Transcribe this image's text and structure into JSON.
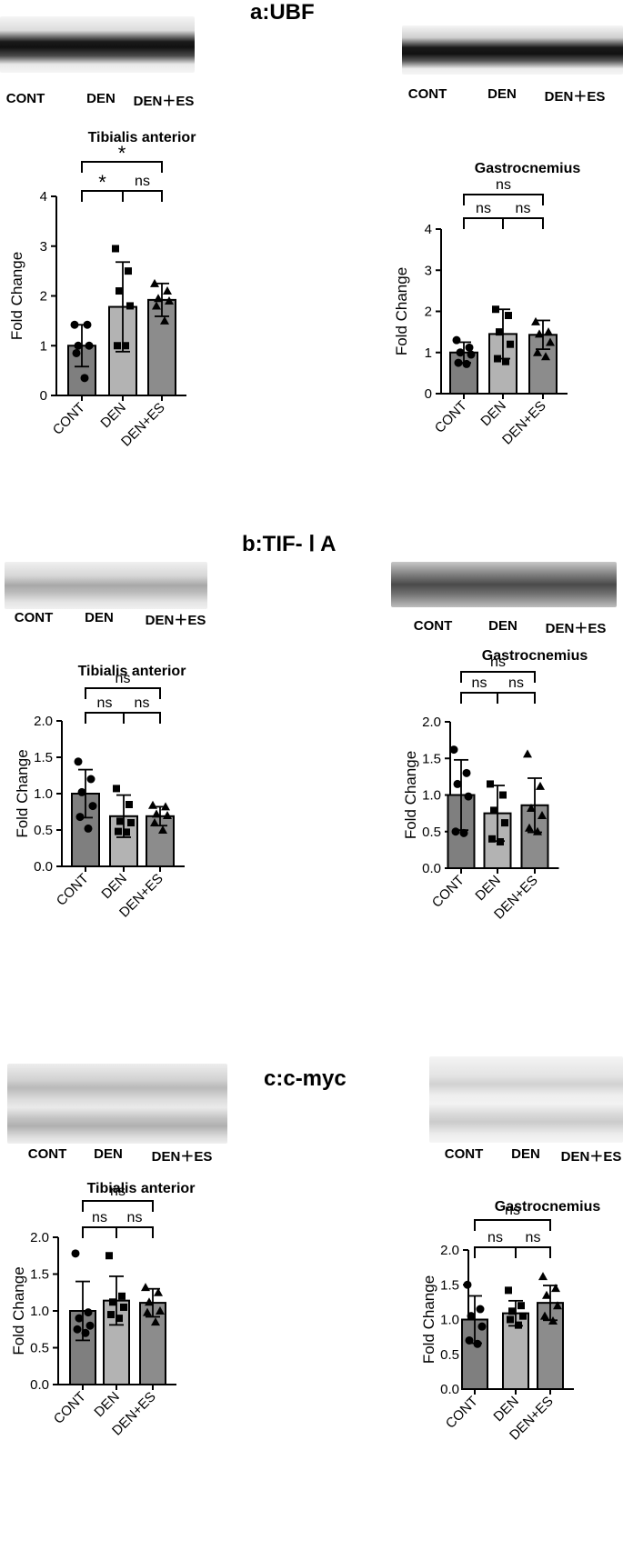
{
  "sections": [
    {
      "title": "a:UBF"
    },
    {
      "title": "b:TIF- Ⅰ A"
    },
    {
      "title": "c:c-myc"
    }
  ],
  "blot_labels": [
    "CONT",
    "DEN",
    "DEN＋ES"
  ],
  "blot_labels_b_left": [
    "CONT",
    "DEN",
    "DEN＋ES"
  ],
  "chart_data": [
    {
      "id": "a-left",
      "type": "bar",
      "title": "Tibialis anterior",
      "ylabel": "Fold Change",
      "categories": [
        "CONT",
        "DEN",
        "DEN+ES"
      ],
      "values": [
        1.0,
        1.78,
        1.92
      ],
      "sd": [
        0.42,
        0.9,
        0.33
      ],
      "ylim": [
        0,
        4
      ],
      "yticks": [
        "0",
        "1",
        "2",
        "3",
        "4"
      ],
      "colors": [
        "#7f7f7f",
        "#b3b3b3",
        "#8c8c8c"
      ],
      "markers": [
        "circle",
        "square",
        "triangle"
      ],
      "points": [
        [
          1.42,
          1.42,
          1.0,
          1.0,
          0.85,
          0.35
        ],
        [
          2.95,
          2.5,
          2.1,
          1.8,
          1.0,
          1.0
        ],
        [
          2.25,
          2.1,
          1.95,
          1.9,
          1.8,
          1.5
        ]
      ],
      "comparisons": [
        {
          "a": 0,
          "b": 1,
          "label": "*"
        },
        {
          "a": 1,
          "b": 2,
          "label": "ns"
        },
        {
          "a": 0,
          "b": 2,
          "label": "*"
        }
      ]
    },
    {
      "id": "a-right",
      "type": "bar",
      "title": "Gastrocnemius",
      "ylabel": "Fold Change",
      "categories": [
        "CONT",
        "DEN",
        "DEN+ES"
      ],
      "values": [
        1.0,
        1.45,
        1.43
      ],
      "sd": [
        0.25,
        0.6,
        0.35
      ],
      "ylim": [
        0,
        4
      ],
      "yticks": [
        "0",
        "1",
        "2",
        "3",
        "4"
      ],
      "colors": [
        "#7f7f7f",
        "#b3b3b3",
        "#8c8c8c"
      ],
      "markers": [
        "circle",
        "square",
        "triangle"
      ],
      "points": [
        [
          1.3,
          1.12,
          1.0,
          0.95,
          0.75,
          0.72
        ],
        [
          2.05,
          1.9,
          1.5,
          1.2,
          0.85,
          0.78
        ],
        [
          1.75,
          1.5,
          1.45,
          1.25,
          1.0,
          0.9
        ]
      ],
      "comparisons": [
        {
          "a": 0,
          "b": 1,
          "label": "ns"
        },
        {
          "a": 1,
          "b": 2,
          "label": "ns"
        },
        {
          "a": 0,
          "b": 2,
          "label": "ns"
        }
      ]
    },
    {
      "id": "b-left",
      "type": "bar",
      "title": "Tibialis anterior",
      "ylabel": "Fold Change",
      "categories": [
        "CONT",
        "DEN",
        "DEN+ES"
      ],
      "values": [
        1.0,
        0.69,
        0.69
      ],
      "sd": [
        0.33,
        0.29,
        0.13
      ],
      "ylim": [
        0,
        2
      ],
      "yticks": [
        "0.0",
        "0.5",
        "1.0",
        "1.5",
        "2.0"
      ],
      "colors": [
        "#7f7f7f",
        "#b3b3b3",
        "#8c8c8c"
      ],
      "markers": [
        "circle",
        "square",
        "triangle"
      ],
      "points": [
        [
          1.44,
          1.2,
          1.02,
          0.83,
          0.68,
          0.52
        ],
        [
          1.07,
          0.85,
          0.62,
          0.6,
          0.48,
          0.47
        ],
        [
          0.84,
          0.82,
          0.72,
          0.7,
          0.6,
          0.5
        ]
      ],
      "comparisons": [
        {
          "a": 0,
          "b": 1,
          "label": "ns"
        },
        {
          "a": 1,
          "b": 2,
          "label": "ns"
        },
        {
          "a": 0,
          "b": 2,
          "label": "ns"
        }
      ]
    },
    {
      "id": "b-right",
      "type": "bar",
      "title": "Gastrocnemius",
      "ylabel": "Fold Change",
      "categories": [
        "CONT",
        "DEN",
        "DEN+ES"
      ],
      "values": [
        1.0,
        0.75,
        0.86
      ],
      "sd": [
        0.48,
        0.38,
        0.37
      ],
      "ylim": [
        0,
        2
      ],
      "yticks": [
        "0.0",
        "0.5",
        "1.0",
        "1.5",
        "2.0"
      ],
      "colors": [
        "#7f7f7f",
        "#b3b3b3",
        "#8c8c8c"
      ],
      "markers": [
        "circle",
        "square",
        "triangle"
      ],
      "points": [
        [
          1.62,
          1.3,
          1.15,
          0.98,
          0.5,
          0.48
        ],
        [
          1.15,
          1.0,
          0.79,
          0.62,
          0.4,
          0.36
        ],
        [
          1.56,
          1.12,
          0.82,
          0.72,
          0.55,
          0.5
        ]
      ],
      "comparisons": [
        {
          "a": 0,
          "b": 1,
          "label": "ns"
        },
        {
          "a": 1,
          "b": 2,
          "label": "ns"
        },
        {
          "a": 0,
          "b": 2,
          "label": "ns"
        }
      ]
    },
    {
      "id": "c-left",
      "type": "bar",
      "title": "Tibialis anterior",
      "ylabel": "Fold Change",
      "categories": [
        "CONT",
        "DEN",
        "DEN+ES"
      ],
      "values": [
        1.0,
        1.14,
        1.11
      ],
      "sd": [
        0.4,
        0.33,
        0.19
      ],
      "ylim": [
        0,
        2
      ],
      "yticks": [
        "0.0",
        "0.5",
        "1.0",
        "1.5",
        "2.0"
      ],
      "colors": [
        "#7f7f7f",
        "#b3b3b3",
        "#8c8c8c"
      ],
      "markers": [
        "circle",
        "square",
        "triangle"
      ],
      "points": [
        [
          1.78,
          0.98,
          0.9,
          0.8,
          0.75,
          0.7
        ],
        [
          1.75,
          1.2,
          1.12,
          1.05,
          0.95,
          0.9
        ],
        [
          1.32,
          1.25,
          1.12,
          1.0,
          0.98,
          0.85
        ]
      ],
      "comparisons": [
        {
          "a": 0,
          "b": 1,
          "label": "ns"
        },
        {
          "a": 1,
          "b": 2,
          "label": "ns"
        },
        {
          "a": 0,
          "b": 2,
          "label": "ns"
        }
      ]
    },
    {
      "id": "c-right",
      "type": "bar",
      "title": "Gastrocnemius",
      "ylabel": "Fold Change",
      "categories": [
        "CONT",
        "DEN",
        "DEN+ES"
      ],
      "values": [
        1.0,
        1.09,
        1.24
      ],
      "sd": [
        0.34,
        0.18,
        0.25
      ],
      "ylim": [
        0,
        2
      ],
      "yticks": [
        "0.0",
        "0.5",
        "1.0",
        "1.5",
        "2.0"
      ],
      "colors": [
        "#7f7f7f",
        "#b3b3b3",
        "#8c8c8c"
      ],
      "markers": [
        "circle",
        "square",
        "triangle"
      ],
      "points": [
        [
          1.5,
          1.15,
          1.05,
          0.9,
          0.7,
          0.65
        ],
        [
          1.42,
          1.2,
          1.12,
          1.05,
          1.0,
          0.92
        ],
        [
          1.62,
          1.45,
          1.35,
          1.2,
          1.05,
          0.98
        ]
      ],
      "comparisons": [
        {
          "a": 0,
          "b": 1,
          "label": "ns"
        },
        {
          "a": 1,
          "b": 2,
          "label": "ns"
        },
        {
          "a": 0,
          "b": 2,
          "label": "ns"
        }
      ]
    }
  ]
}
